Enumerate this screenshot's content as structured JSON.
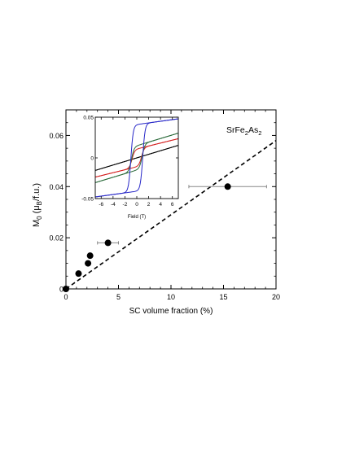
{
  "chart_data": [
    {
      "type": "scatter",
      "title": "",
      "annotation": {
        "main": "SrFe",
        "sub1": "2",
        "mid": "As",
        "sub2": "2"
      },
      "xlabel": "SC volume fraction (%)",
      "ylabel": {
        "main": "M",
        "sub0": "0",
        "open": " (μ",
        "subB": "B",
        "close": "/f.u.)"
      },
      "xlim": [
        0,
        20
      ],
      "ylim": [
        0,
        0.07
      ],
      "xticks": [
        "0",
        "5",
        "10",
        "15",
        "20"
      ],
      "yticks": [
        "0",
        "0.02",
        "0.04",
        "0.06"
      ],
      "grid": false,
      "points": [
        {
          "x": 0,
          "y": 0,
          "xerr": 0
        },
        {
          "x": 1.2,
          "y": 0.006,
          "xerr": 0
        },
        {
          "x": 2.1,
          "y": 0.01,
          "xerr": 0
        },
        {
          "x": 2.3,
          "y": 0.013,
          "xerr": 0
        },
        {
          "x": 4.0,
          "y": 0.018,
          "xerr": 1.0
        },
        {
          "x": 15.4,
          "y": 0.04,
          "xerr": 3.7
        }
      ],
      "fit_line": {
        "style": "dashed",
        "x": [
          0,
          20
        ],
        "y": [
          0,
          0.058
        ]
      }
    },
    {
      "type": "line",
      "role": "inset",
      "xlabel": "Field (T)",
      "ylabel": "",
      "xlim": [
        -7,
        7
      ],
      "ylim": [
        -0.05,
        0.05
      ],
      "xticks": [
        "-6",
        "-4",
        "-2",
        "0",
        "2",
        "4",
        "6"
      ],
      "yticks": [
        "-0.05",
        "0",
        "0.05"
      ],
      "series": [
        {
          "color": "#000000",
          "Ms": 0.0,
          "Hc": 0.0,
          "slope": 0.0022,
          "w": 1.0
        },
        {
          "color": "#d42020",
          "Ms": 0.011,
          "Hc": 0.8,
          "slope": 0.0018,
          "w": 0.45
        },
        {
          "color": "#2a6a3a",
          "Ms": 0.015,
          "Hc": 0.9,
          "slope": 0.0022,
          "w": 0.45
        },
        {
          "color": "#2828c8",
          "Ms": 0.041,
          "Hc": 1.0,
          "slope": 0.001,
          "w": 0.4
        }
      ]
    }
  ]
}
